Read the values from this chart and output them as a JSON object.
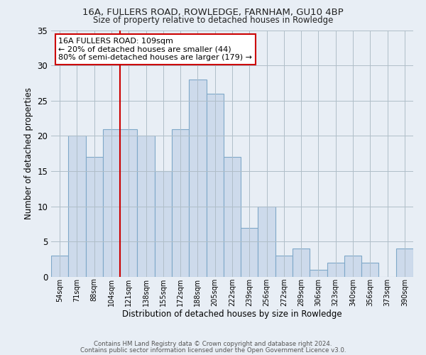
{
  "title1": "16A, FULLERS ROAD, ROWLEDGE, FARNHAM, GU10 4BP",
  "title2": "Size of property relative to detached houses in Rowledge",
  "xlabel": "Distribution of detached houses by size in Rowledge",
  "ylabel": "Number of detached properties",
  "bar_labels": [
    "54sqm",
    "71sqm",
    "88sqm",
    "104sqm",
    "121sqm",
    "138sqm",
    "155sqm",
    "172sqm",
    "188sqm",
    "205sqm",
    "222sqm",
    "239sqm",
    "256sqm",
    "272sqm",
    "289sqm",
    "306sqm",
    "323sqm",
    "340sqm",
    "356sqm",
    "373sqm",
    "390sqm"
  ],
  "bar_values": [
    3,
    20,
    17,
    21,
    21,
    20,
    15,
    21,
    28,
    26,
    17,
    7,
    10,
    3,
    4,
    1,
    2,
    3,
    2,
    0,
    4
  ],
  "bar_color": "#cddaeb",
  "bar_edge_color": "#7fa8c8",
  "ylim": [
    0,
    35
  ],
  "yticks": [
    0,
    5,
    10,
    15,
    20,
    25,
    30,
    35
  ],
  "vline_x": 3.5,
  "vline_color": "#cc0000",
  "annotation_title": "16A FULLERS ROAD: 109sqm",
  "annotation_line1": "← 20% of detached houses are smaller (44)",
  "annotation_line2": "80% of semi-detached houses are larger (179) →",
  "annotation_box_color": "#ffffff",
  "annotation_box_edge": "#cc0000",
  "footer1": "Contains HM Land Registry data © Crown copyright and database right 2024.",
  "footer2": "Contains public sector information licensed under the Open Government Licence v3.0.",
  "background_color": "#e8eef5",
  "plot_background": "#e8eef5",
  "grid_color": "#b0bec8"
}
